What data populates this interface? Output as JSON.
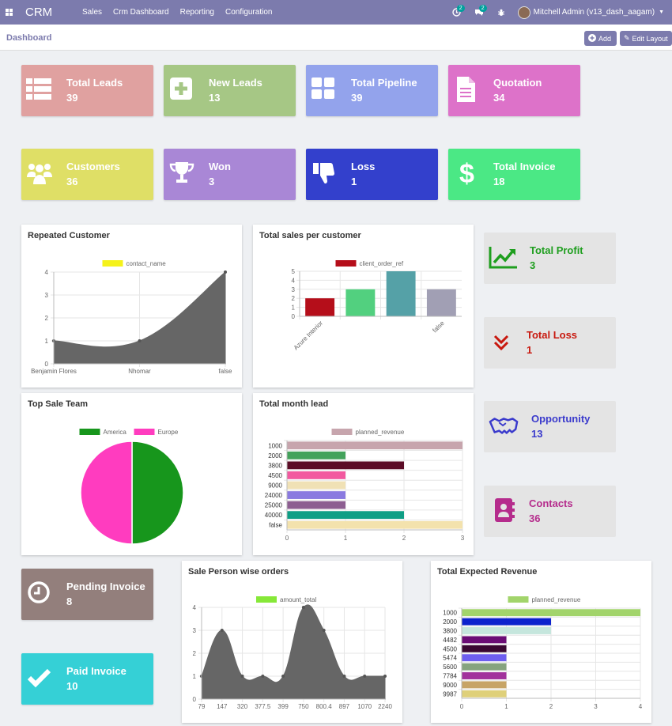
{
  "navbar": {
    "brand": "CRM",
    "menu": [
      "Sales",
      "Crm Dashboard",
      "Reporting",
      "Configuration"
    ],
    "activity_count": "2",
    "message_count": "2",
    "user": "Mitchell Admin (v13_dash_aagam)"
  },
  "control": {
    "breadcrumb": "Dashboard",
    "add_label": "Add",
    "edit_label": "Edit Layout"
  },
  "tiles": [
    {
      "name": "Total Leads",
      "value": "39",
      "color": "#e0a1a0",
      "icon": "list-icon"
    },
    {
      "name": "New Leads",
      "value": "13",
      "color": "#a6c785",
      "icon": "plus-square-icon"
    },
    {
      "name": "Total Pipeline",
      "value": "39",
      "color": "#93a3ec",
      "icon": "grid-icon"
    },
    {
      "name": "Quotation",
      "value": "34",
      "color": "#dd72c9",
      "icon": "document-icon"
    },
    {
      "name": "Customers",
      "value": "36",
      "color": "#dfdf66",
      "icon": "users-icon"
    },
    {
      "name": "Won",
      "value": "3",
      "color": "#a987d6",
      "icon": "trophy-icon"
    },
    {
      "name": "Loss",
      "value": "1",
      "color": "#3340cc",
      "icon": "thumbs-down-icon"
    },
    {
      "name": "Total Invoice",
      "value": "18",
      "color": "#4be885",
      "icon": "dollar-icon"
    },
    {
      "name": "Pending Invoice",
      "value": "8",
      "color": "#937f7c",
      "icon": "clock-icon"
    },
    {
      "name": "Paid Invoice",
      "value": "10",
      "color": "#35d0d6",
      "icon": "check-icon"
    }
  ],
  "side_tiles": [
    {
      "name": "Total Profit",
      "value": "3",
      "color": "#1e9e1e",
      "icon": "trend-up-icon"
    },
    {
      "name": "Total Loss",
      "value": "1",
      "color": "#c8180e",
      "icon": "double-chevron-down-icon"
    },
    {
      "name": "Opportunity",
      "value": "13",
      "color": "#3a3acc",
      "icon": "handshake-icon"
    },
    {
      "name": "Contacts",
      "value": "36",
      "color": "#b52c8c",
      "icon": "contact-book-icon"
    }
  ],
  "chart_data": [
    {
      "id": "repeated",
      "type": "area",
      "title": "Repeated Customer",
      "legend": [
        {
          "name": "contact_name",
          "color": "#f5f21a"
        }
      ],
      "categories": [
        "Benjamin Flores",
        "Nhomar",
        "false"
      ],
      "values": [
        1,
        1,
        4
      ],
      "ylim": [
        0,
        4
      ],
      "yticks": [
        0,
        1,
        2,
        3,
        4
      ],
      "fill": "#666666"
    },
    {
      "id": "salespercustomer",
      "type": "bar",
      "title": "Total sales per customer",
      "legend": [
        {
          "name": "client_order_ref",
          "color": "#b50e1a"
        }
      ],
      "categories": [
        "Azure Interior",
        "",
        "",
        "false"
      ],
      "values": [
        2,
        3,
        5,
        3
      ],
      "colors": [
        "#b50e1a",
        "#52d07f",
        "#55a1a7",
        "#a19fb4"
      ],
      "ylim": [
        0,
        5
      ],
      "yticks": [
        0,
        1,
        2,
        3,
        4,
        5
      ]
    },
    {
      "id": "topteam",
      "type": "pie",
      "title": "Top Sale Team",
      "legend": [
        {
          "name": "America",
          "color": "#17961c"
        },
        {
          "name": "Europe",
          "color": "#ff3cbf"
        }
      ],
      "values": [
        1,
        1
      ],
      "colors": [
        "#17961c",
        "#ff3cbf"
      ]
    },
    {
      "id": "monthlead",
      "type": "bar",
      "orientation": "horizontal",
      "title": "Total month lead",
      "legend": [
        {
          "name": "planned_revenue",
          "color": "#c7a5ad"
        }
      ],
      "categories": [
        "1000",
        "2000",
        "3800",
        "4500",
        "9000",
        "24000",
        "25000",
        "40000",
        "false"
      ],
      "values": [
        3,
        1,
        2,
        1,
        1,
        1,
        1,
        2,
        3
      ],
      "colors": [
        "#c7a5ad",
        "#43a25b",
        "#5b0c26",
        "#f2599f",
        "#f0e1b5",
        "#8a7ae0",
        "#8d5e91",
        "#0e9e85",
        "#f3e2ad"
      ],
      "xlim": [
        0,
        3
      ],
      "xticks": [
        0,
        1,
        2,
        3
      ]
    },
    {
      "id": "salesperson",
      "type": "area",
      "title": "Sale Person wise orders",
      "legend": [
        {
          "name": "amount_total",
          "color": "#86e838"
        }
      ],
      "categories": [
        "79",
        "147",
        "320",
        "377.5",
        "399",
        "750",
        "800.4",
        "897",
        "1070",
        "2240"
      ],
      "values": [
        1,
        3,
        1,
        1,
        1,
        4,
        3,
        1,
        1,
        1
      ],
      "ylim": [
        0,
        4
      ],
      "yticks": [
        0,
        1,
        2,
        3,
        4
      ],
      "fill": "#666666"
    },
    {
      "id": "expectedrevenue",
      "type": "bar",
      "orientation": "horizontal",
      "title": "Total Expected Revenue",
      "legend": [
        {
          "name": "planned_revenue",
          "color": "#a2d46b"
        }
      ],
      "categories": [
        "1000",
        "2000",
        "3800",
        "4482",
        "4500",
        "5474",
        "5600",
        "7784",
        "9000",
        "9987"
      ],
      "values": [
        4,
        2,
        2,
        1,
        1,
        1,
        1,
        1,
        1,
        1
      ],
      "colors": [
        "#a2d46b",
        "#0d22cd",
        "#c5e6dd",
        "#6b0c75",
        "#3a0732",
        "#6e5ef0",
        "#86a37f",
        "#a2329c",
        "#c7a466",
        "#dfd07a"
      ],
      "xlim": [
        0,
        4
      ],
      "xticks": [
        0,
        1,
        2,
        3,
        4
      ]
    }
  ]
}
